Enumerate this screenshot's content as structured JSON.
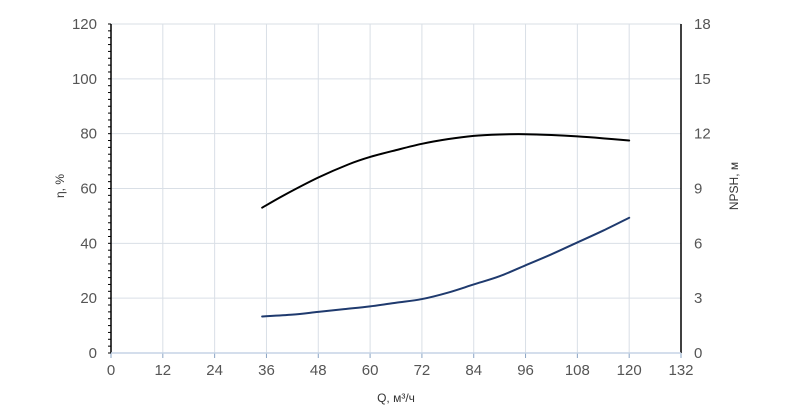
{
  "chart_data": {
    "type": "line",
    "title": "",
    "xlabel": "Q, м³/ч",
    "ylabel_left": "η, %",
    "ylabel_right": "NPSH, м",
    "xlim": [
      0,
      132
    ],
    "ylim_left": [
      0,
      120
    ],
    "ylim_right": [
      0,
      18
    ],
    "x_ticks": [
      "0",
      "12",
      "24",
      "36",
      "48",
      "60",
      "72",
      "84",
      "96",
      "108",
      "120",
      "132"
    ],
    "y_left_ticks": [
      "0",
      "20",
      "40",
      "60",
      "80",
      "100",
      "120"
    ],
    "y_right_ticks": [
      "0",
      "3",
      "6",
      "9",
      "12",
      "15",
      "18"
    ],
    "grid": true,
    "legend": "none",
    "series": [
      {
        "axis": "left",
        "color": "#000000",
        "x": [
          35,
          40,
          48,
          55,
          60,
          66,
          72,
          78,
          84,
          90,
          96,
          102,
          108,
          114,
          120
        ],
        "y": [
          53,
          57.5,
          64,
          68.8,
          71.5,
          74,
          76.3,
          78,
          79.2,
          79.7,
          79.8,
          79.5,
          79,
          78.3,
          77.5
        ]
      },
      {
        "axis": "right",
        "color": "#1f3a6e",
        "x": [
          35,
          42,
          48,
          54,
          60,
          66,
          72,
          78,
          84,
          90,
          96,
          102,
          108,
          114,
          120
        ],
        "y": [
          2.0,
          2.1,
          2.25,
          2.4,
          2.55,
          2.75,
          2.95,
          3.3,
          3.75,
          4.2,
          4.8,
          5.4,
          6.05,
          6.7,
          7.4
        ]
      }
    ],
    "colors": {
      "grid": "#d9dfe6",
      "left_axis": "#000000",
      "right_axis": "#000000",
      "x_axis": "#c5d4e6"
    }
  }
}
